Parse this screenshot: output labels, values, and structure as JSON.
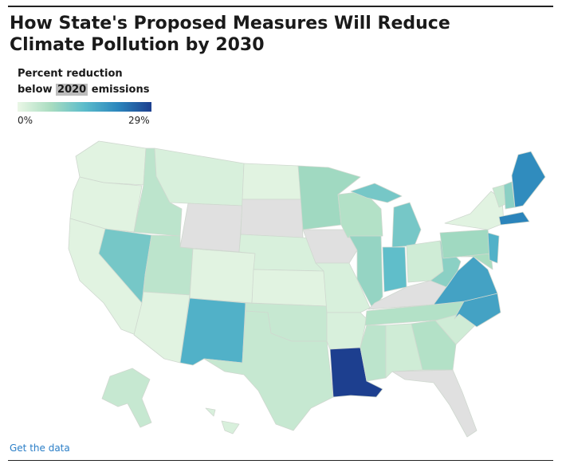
{
  "title": "How State's Proposed Measures Will Reduce Climate Pollution by 2030",
  "legend": {
    "line1": "Percent reduction",
    "line2_prefix": "below ",
    "line2_highlight": "2020",
    "line2_suffix": " emissions",
    "min_label": "0%",
    "max_label": "29%",
    "min_value": 0,
    "max_value": 29,
    "color_ramp": [
      "#eaf7e6",
      "#a8dcc0",
      "#5bbccb",
      "#2b86bd",
      "#1d3f8f"
    ]
  },
  "no_data_color": "#e0e0e0",
  "link_text": "Get the data",
  "states": [
    {
      "code": "WA",
      "value": 1
    },
    {
      "code": "OR",
      "value": 1
    },
    {
      "code": "CA",
      "value": 1
    },
    {
      "code": "NV",
      "value": 12
    },
    {
      "code": "ID",
      "value": 5
    },
    {
      "code": "MT",
      "value": 2
    },
    {
      "code": "WY",
      "value": null
    },
    {
      "code": "UT",
      "value": 5
    },
    {
      "code": "AZ",
      "value": 1
    },
    {
      "code": "CO",
      "value": 1
    },
    {
      "code": "NM",
      "value": 16
    },
    {
      "code": "ND",
      "value": 1
    },
    {
      "code": "SD",
      "value": null
    },
    {
      "code": "NE",
      "value": 2
    },
    {
      "code": "KS",
      "value": 1
    },
    {
      "code": "OK",
      "value": 4
    },
    {
      "code": "TX",
      "value": 4
    },
    {
      "code": "MN",
      "value": 8
    },
    {
      "code": "IA",
      "value": null
    },
    {
      "code": "MO",
      "value": 2
    },
    {
      "code": "AR",
      "value": 2
    },
    {
      "code": "LA",
      "value": 29
    },
    {
      "code": "WI",
      "value": 6
    },
    {
      "code": "IL",
      "value": 9
    },
    {
      "code": "MI",
      "value": 12
    },
    {
      "code": "IN",
      "value": 14
    },
    {
      "code": "OH",
      "value": 3
    },
    {
      "code": "KY",
      "value": null
    },
    {
      "code": "TN",
      "value": 6
    },
    {
      "code": "MS",
      "value": 5
    },
    {
      "code": "AL",
      "value": 3
    },
    {
      "code": "GA",
      "value": 6
    },
    {
      "code": "FL",
      "value": null
    },
    {
      "code": "SC",
      "value": 3
    },
    {
      "code": "NC",
      "value": 18
    },
    {
      "code": "VA",
      "value": 18
    },
    {
      "code": "WV",
      "value": 10
    },
    {
      "code": "PA",
      "value": 8
    },
    {
      "code": "NY",
      "value": 1
    },
    {
      "code": "VT",
      "value": 4
    },
    {
      "code": "NH",
      "value": 10
    },
    {
      "code": "ME",
      "value": 21
    },
    {
      "code": "MA",
      "value": 22
    },
    {
      "code": "NJ",
      "value": 16
    },
    {
      "code": "MD",
      "value": 7
    },
    {
      "code": "AK",
      "value": 4
    },
    {
      "code": "HI",
      "value": 2
    }
  ]
}
